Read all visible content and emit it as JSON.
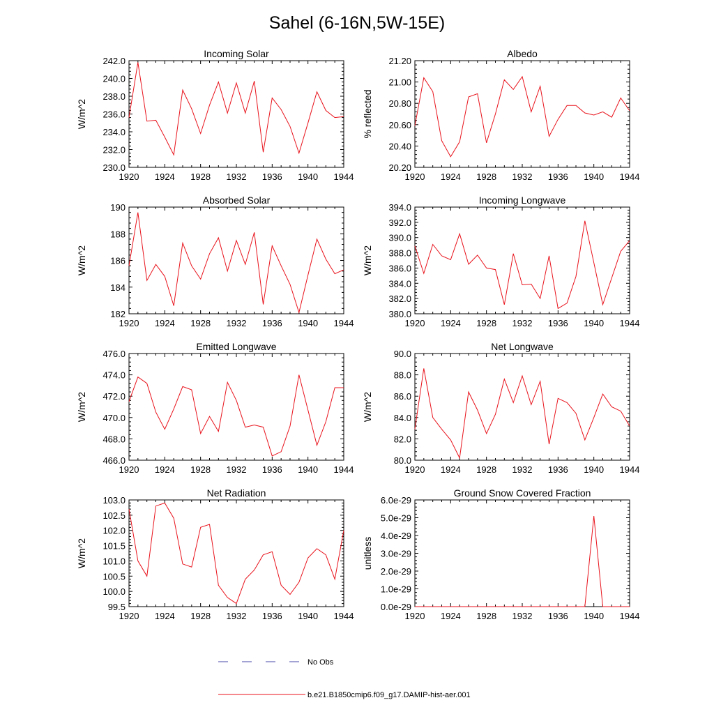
{
  "figure": {
    "title": "Sahel (6-16N,5W-15E)",
    "series_color": "#e8121b",
    "noobs_color": "#4a4aa8",
    "legend": {
      "noobs_label": "No Obs",
      "model_label": "b.e21.B1850cmip6.f09_g17.DAMIP-hist-aer.001"
    }
  },
  "chart_data": [
    {
      "type": "line",
      "title": "Incoming Solar",
      "ylabel": "W/m^2",
      "xlim": [
        1920,
        1944
      ],
      "ylim": [
        230,
        242
      ],
      "yticks": [
        230,
        232,
        234,
        236,
        238,
        240,
        242
      ],
      "yticklabels": [
        "230.0",
        "232.0",
        "234.0",
        "236.0",
        "238.0",
        "240.0",
        "242.0"
      ],
      "xticks": [
        1920,
        1924,
        1928,
        1932,
        1936,
        1940,
        1944
      ],
      "xticklabels": [
        "1920",
        "1924",
        "1928",
        "1932",
        "1936",
        "1940",
        "1944"
      ],
      "x": [
        1920,
        1921,
        1922,
        1923,
        1924,
        1925,
        1926,
        1927,
        1928,
        1929,
        1930,
        1931,
        1932,
        1933,
        1934,
        1935,
        1936,
        1937,
        1938,
        1939,
        1940,
        1941,
        1942,
        1943,
        1944
      ],
      "y": [
        235.6,
        241.8,
        235.2,
        235.3,
        233.4,
        231.4,
        238.7,
        236.6,
        233.8,
        237.0,
        239.6,
        236.1,
        239.5,
        236.1,
        239.7,
        231.7,
        237.8,
        236.5,
        234.6,
        231.6,
        235.0,
        238.5,
        236.4,
        235.6,
        235.7
      ]
    },
    {
      "type": "line",
      "title": "Albedo",
      "ylabel": "% reflected",
      "xlim": [
        1920,
        1944
      ],
      "ylim": [
        20.2,
        21.2
      ],
      "yticks": [
        20.2,
        20.4,
        20.6,
        20.8,
        21.0,
        21.2
      ],
      "yticklabels": [
        "20.20",
        "20.40",
        "20.60",
        "20.80",
        "21.00",
        "21.20"
      ],
      "xticks": [
        1920,
        1924,
        1928,
        1932,
        1936,
        1940,
        1944
      ],
      "xticklabels": [
        "1920",
        "1924",
        "1928",
        "1932",
        "1936",
        "1940",
        "1944"
      ],
      "x": [
        1920,
        1921,
        1922,
        1923,
        1924,
        1925,
        1926,
        1927,
        1928,
        1929,
        1930,
        1931,
        1932,
        1933,
        1934,
        1935,
        1936,
        1937,
        1938,
        1939,
        1940,
        1941,
        1942,
        1943,
        1944
      ],
      "y": [
        20.59,
        21.04,
        20.91,
        20.45,
        20.3,
        20.44,
        20.86,
        20.89,
        20.43,
        20.7,
        21.02,
        20.93,
        21.05,
        20.72,
        20.96,
        20.49,
        20.65,
        20.78,
        20.78,
        20.71,
        20.69,
        20.72,
        20.67,
        20.85,
        20.73
      ]
    },
    {
      "type": "line",
      "title": "Absorbed Solar",
      "ylabel": "W/m^2",
      "xlim": [
        1920,
        1944
      ],
      "ylim": [
        182,
        190
      ],
      "yticks": [
        182,
        184,
        186,
        188,
        190
      ],
      "yticklabels": [
        "182",
        "184",
        "186",
        "188",
        "190"
      ],
      "xticks": [
        1920,
        1924,
        1928,
        1932,
        1936,
        1940,
        1944
      ],
      "xticklabels": [
        "1920",
        "1924",
        "1928",
        "1932",
        "1936",
        "1940",
        "1944"
      ],
      "x": [
        1920,
        1921,
        1922,
        1923,
        1924,
        1925,
        1926,
        1927,
        1928,
        1929,
        1930,
        1931,
        1932,
        1933,
        1934,
        1935,
        1936,
        1937,
        1938,
        1939,
        1940,
        1941,
        1942,
        1943,
        1944
      ],
      "y": [
        185.6,
        189.6,
        184.5,
        185.7,
        184.8,
        182.6,
        187.3,
        185.6,
        184.6,
        186.5,
        187.7,
        185.2,
        187.5,
        185.7,
        188.1,
        182.7,
        187.1,
        185.6,
        184.2,
        182.1,
        184.9,
        187.6,
        186.1,
        185.0,
        185.3
      ]
    },
    {
      "type": "line",
      "title": "Incoming Longwave",
      "ylabel": "W/m^2",
      "xlim": [
        1920,
        1944
      ],
      "ylim": [
        380,
        394
      ],
      "yticks": [
        380,
        382,
        384,
        386,
        388,
        390,
        392,
        394
      ],
      "yticklabels": [
        "380.0",
        "382.0",
        "384.0",
        "386.0",
        "388.0",
        "390.0",
        "392.0",
        "394.0"
      ],
      "xticks": [
        1920,
        1924,
        1928,
        1932,
        1936,
        1940,
        1944
      ],
      "xticklabels": [
        "1920",
        "1924",
        "1928",
        "1932",
        "1936",
        "1940",
        "1944"
      ],
      "x": [
        1920,
        1921,
        1922,
        1923,
        1924,
        1925,
        1926,
        1927,
        1928,
        1929,
        1930,
        1931,
        1932,
        1933,
        1934,
        1935,
        1936,
        1937,
        1938,
        1939,
        1940,
        1941,
        1942,
        1943,
        1944
      ],
      "y": [
        388.9,
        385.3,
        389.1,
        387.6,
        387.1,
        390.5,
        386.5,
        387.7,
        386.0,
        385.8,
        381.2,
        387.9,
        383.8,
        383.9,
        382.0,
        387.6,
        380.7,
        381.4,
        384.9,
        392.2,
        386.7,
        381.2,
        384.7,
        388.2,
        389.6
      ]
    },
    {
      "type": "line",
      "title": "Emitted Longwave",
      "ylabel": "W/m^2",
      "xlim": [
        1920,
        1944
      ],
      "ylim": [
        466,
        476
      ],
      "yticks": [
        466,
        468,
        470,
        472,
        474,
        476
      ],
      "yticklabels": [
        "466.0",
        "468.0",
        "470.0",
        "472.0",
        "474.0",
        "476.0"
      ],
      "xticks": [
        1920,
        1924,
        1928,
        1932,
        1936,
        1940,
        1944
      ],
      "xticklabels": [
        "1920",
        "1924",
        "1928",
        "1932",
        "1936",
        "1940",
        "1944"
      ],
      "x": [
        1920,
        1921,
        1922,
        1923,
        1924,
        1925,
        1926,
        1927,
        1928,
        1929,
        1930,
        1931,
        1932,
        1933,
        1934,
        1935,
        1936,
        1937,
        1938,
        1939,
        1940,
        1941,
        1942,
        1943,
        1944
      ],
      "y": [
        471.5,
        473.8,
        473.2,
        470.5,
        468.9,
        470.8,
        472.9,
        472.6,
        468.5,
        470.1,
        468.7,
        473.3,
        471.6,
        469.1,
        469.3,
        469.1,
        466.4,
        466.8,
        469.2,
        474.0,
        470.7,
        467.4,
        469.6,
        472.8,
        472.8
      ]
    },
    {
      "type": "line",
      "title": "Net Longwave",
      "ylabel": "W/m^2",
      "xlim": [
        1920,
        1944
      ],
      "ylim": [
        80,
        90
      ],
      "yticks": [
        80,
        82,
        84,
        86,
        88,
        90
      ],
      "yticklabels": [
        "80.0",
        "82.0",
        "84.0",
        "86.0",
        "88.0",
        "90.0"
      ],
      "xticks": [
        1920,
        1924,
        1928,
        1932,
        1936,
        1940,
        1944
      ],
      "xticklabels": [
        "1920",
        "1924",
        "1928",
        "1932",
        "1936",
        "1940",
        "1944"
      ],
      "x": [
        1920,
        1921,
        1922,
        1923,
        1924,
        1925,
        1926,
        1927,
        1928,
        1929,
        1930,
        1931,
        1932,
        1933,
        1934,
        1935,
        1936,
        1937,
        1938,
        1939,
        1940,
        1941,
        1942,
        1943,
        1944
      ],
      "y": [
        82.9,
        88.6,
        84.0,
        82.9,
        81.9,
        80.2,
        86.4,
        84.7,
        82.5,
        84.3,
        87.6,
        85.4,
        87.9,
        85.2,
        87.4,
        81.5,
        85.8,
        85.4,
        84.4,
        81.9,
        84.0,
        86.2,
        85.0,
        84.6,
        83.2
      ]
    },
    {
      "type": "line",
      "title": "Net Radiation",
      "ylabel": "W/m^2",
      "xlim": [
        1920,
        1944
      ],
      "ylim": [
        99.5,
        103.0
      ],
      "yticks": [
        99.5,
        100.0,
        100.5,
        101.0,
        101.5,
        102.0,
        102.5,
        103.0
      ],
      "yticklabels": [
        "99.5",
        "100.0",
        "100.5",
        "101.0",
        "101.5",
        "102.0",
        "102.5",
        "103.0"
      ],
      "xticks": [
        1920,
        1924,
        1928,
        1932,
        1936,
        1940,
        1944
      ],
      "xticklabels": [
        "1920",
        "1924",
        "1928",
        "1932",
        "1936",
        "1940",
        "1944"
      ],
      "x": [
        1920,
        1921,
        1922,
        1923,
        1924,
        1925,
        1926,
        1927,
        1928,
        1929,
        1930,
        1931,
        1932,
        1933,
        1934,
        1935,
        1936,
        1937,
        1938,
        1939,
        1940,
        1941,
        1942,
        1943,
        1944
      ],
      "y": [
        102.7,
        101.0,
        100.5,
        102.8,
        102.9,
        102.4,
        100.9,
        100.8,
        102.1,
        102.2,
        100.2,
        99.8,
        99.6,
        100.4,
        100.7,
        101.2,
        101.3,
        100.2,
        99.9,
        100.3,
        101.1,
        101.4,
        101.2,
        100.4,
        102.0
      ]
    },
    {
      "type": "line",
      "title": "Ground Snow Covered Fraction",
      "ylabel": "unitless",
      "xlim": [
        1920,
        1944
      ],
      "ylim": [
        0,
        6e-29
      ],
      "yticks": [
        0,
        1e-29,
        2e-29,
        3e-29,
        4e-29,
        5e-29,
        6e-29
      ],
      "yticklabels": [
        "0.0e-29",
        "1.0e-29",
        "2.0e-29",
        "3.0e-29",
        "4.0e-29",
        "5.0e-29",
        "6.0e-29"
      ],
      "xticks": [
        1920,
        1924,
        1928,
        1932,
        1936,
        1940,
        1944
      ],
      "xticklabels": [
        "1920",
        "1924",
        "1928",
        "1932",
        "1936",
        "1940",
        "1944"
      ],
      "x": [
        1920,
        1921,
        1922,
        1923,
        1924,
        1925,
        1926,
        1927,
        1928,
        1929,
        1930,
        1931,
        1932,
        1933,
        1934,
        1935,
        1936,
        1937,
        1938,
        1939,
        1940,
        1941,
        1942,
        1943,
        1944
      ],
      "y": [
        0,
        0,
        0,
        0,
        0,
        0,
        0,
        0,
        0,
        0,
        0,
        0,
        0,
        0,
        0,
        0,
        0,
        0,
        0,
        0,
        5.1e-29,
        0,
        0,
        0,
        0
      ]
    }
  ]
}
